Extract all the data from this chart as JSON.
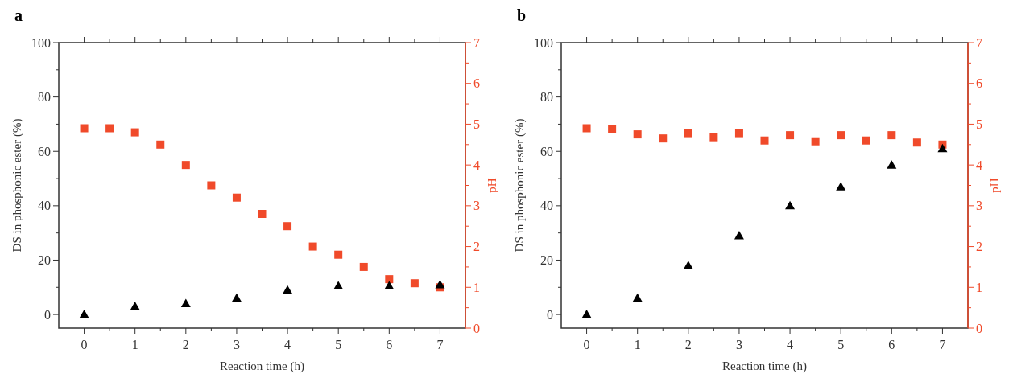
{
  "chart_data": [
    {
      "type": "scatter",
      "title": "a",
      "xlabel": "Reaction time (h)",
      "ylabel": "DS in phosphonic ester (%)",
      "y2label": "pH",
      "xlim": [
        -0.5,
        7.5
      ],
      "xticks": [
        0,
        {
          "value": 0.5,
          "label": null
        },
        1,
        {
          "value": 1.5,
          "label": null
        },
        2,
        {
          "value": 2.5,
          "label": null
        },
        3,
        {
          "value": 3.5,
          "label": null
        },
        4,
        {
          "value": 4.5,
          "label": null
        },
        5,
        {
          "value": 5.5,
          "label": null
        },
        6,
        {
          "value": 6.5,
          "label": null
        },
        7
      ],
      "ylim": [
        -5,
        100
      ],
      "yticks": [
        0,
        {
          "value": 10,
          "label": null
        },
        20,
        {
          "value": 30,
          "label": null
        },
        40,
        {
          "value": 50,
          "label": null
        },
        60,
        {
          "value": 70,
          "label": null
        },
        80,
        {
          "value": 90,
          "label": null
        },
        100
      ],
      "y2lim": [
        0,
        7
      ],
      "y2ticks": [
        0,
        {
          "value": 0.5,
          "label": null
        },
        1,
        {
          "value": 1.5,
          "label": null
        },
        2,
        {
          "value": 2.5,
          "label": null
        },
        3,
        {
          "value": 3.5,
          "label": null
        },
        4,
        {
          "value": 4.5,
          "label": null
        },
        5,
        {
          "value": 5.5,
          "label": null
        },
        6,
        {
          "value": 6.5,
          "label": null
        },
        7
      ],
      "series": [
        {
          "color": "#000000",
          "marker": "triangle",
          "x": [
            0,
            1,
            2,
            3,
            4,
            5,
            6,
            7
          ],
          "values": [
            0,
            3,
            4,
            6,
            9,
            10.5,
            10.5,
            11
          ]
        },
        {
          "color": "#f04a2a",
          "marker": "square",
          "axis": "y2",
          "x": [
            0,
            0.5,
            1,
            1.5,
            2,
            2.5,
            3,
            3.5,
            4,
            4.5,
            5,
            5.5,
            6,
            6.5,
            7
          ],
          "values": [
            4.9,
            4.9,
            4.8,
            4.5,
            4.0,
            3.5,
            3.2,
            2.8,
            2.5,
            2.0,
            1.8,
            1.5,
            1.2,
            1.1,
            1.0
          ]
        }
      ]
    },
    {
      "type": "scatter",
      "title": "b",
      "xlabel": "Reaction time (h)",
      "ylabel": "DS in phosphonic ester (%)",
      "y2label": "pH",
      "xlim": [
        -0.5,
        7.5
      ],
      "xticks": [
        0,
        {
          "value": 0.5,
          "label": null
        },
        1,
        {
          "value": 1.5,
          "label": null
        },
        2,
        {
          "value": 2.5,
          "label": null
        },
        3,
        {
          "value": 3.5,
          "label": null
        },
        4,
        {
          "value": 4.5,
          "label": null
        },
        5,
        {
          "value": 5.5,
          "label": null
        },
        6,
        {
          "value": 6.5,
          "label": null
        },
        7
      ],
      "ylim": [
        -5,
        100
      ],
      "yticks": [
        0,
        {
          "value": 10,
          "label": null
        },
        20,
        {
          "value": 30,
          "label": null
        },
        40,
        {
          "value": 50,
          "label": null
        },
        60,
        {
          "value": 70,
          "label": null
        },
        80,
        {
          "value": 90,
          "label": null
        },
        100
      ],
      "y2lim": [
        0,
        7
      ],
      "y2ticks": [
        0,
        {
          "value": 0.5,
          "label": null
        },
        1,
        {
          "value": 1.5,
          "label": null
        },
        2,
        {
          "value": 2.5,
          "label": null
        },
        3,
        {
          "value": 3.5,
          "label": null
        },
        4,
        {
          "value": 4.5,
          "label": null
        },
        5,
        {
          "value": 5.5,
          "label": null
        },
        6,
        {
          "value": 6.5,
          "label": null
        },
        7
      ],
      "series": [
        {
          "color": "#000000",
          "marker": "triangle",
          "x": [
            0,
            1,
            2,
            3,
            4,
            5,
            6,
            7
          ],
          "values": [
            0,
            6,
            18,
            29,
            40,
            47,
            55,
            61
          ]
        },
        {
          "color": "#f04a2a",
          "marker": "square",
          "axis": "y2",
          "x": [
            0,
            0.5,
            1,
            1.5,
            2,
            2.5,
            3,
            3.5,
            4,
            4.5,
            5,
            5.5,
            6,
            6.5,
            7
          ],
          "values": [
            4.9,
            4.88,
            4.75,
            4.65,
            4.78,
            4.68,
            4.78,
            4.6,
            4.73,
            4.58,
            4.73,
            4.6,
            4.73,
            4.55,
            4.5
          ]
        }
      ]
    }
  ]
}
